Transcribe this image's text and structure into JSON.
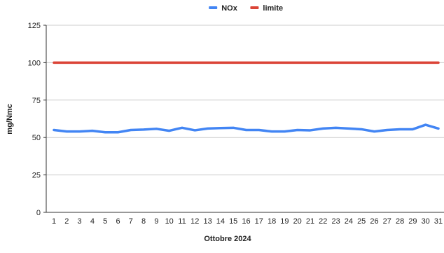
{
  "chart_data": {
    "type": "line",
    "title": "",
    "xlabel": "Ottobre 2024",
    "ylabel": "mg/Nmc",
    "x": [
      1,
      2,
      3,
      4,
      5,
      6,
      7,
      8,
      9,
      10,
      11,
      12,
      13,
      14,
      15,
      16,
      17,
      18,
      19,
      20,
      21,
      22,
      23,
      24,
      25,
      26,
      27,
      28,
      29,
      30,
      31
    ],
    "x_tick_labels": [
      "1",
      "2",
      "3",
      "4",
      "5",
      "6",
      "7",
      "8",
      "9",
      "10",
      "11",
      "12",
      "13",
      "14",
      "15",
      "16",
      "17",
      "18",
      "19",
      "20",
      "21",
      "22",
      "23",
      "24",
      "25",
      "26",
      "27",
      "28",
      "29",
      "30",
      "31"
    ],
    "ylim": [
      0,
      125
    ],
    "y_ticks": [
      0,
      25,
      50,
      75,
      100,
      125
    ],
    "y_tick_labels": [
      "0",
      "25",
      "50",
      "75",
      "100",
      "125"
    ],
    "grid": true,
    "legend_position": "top-center",
    "series": [
      {
        "name": "NOx",
        "color": "#4285f4",
        "values": [
          55,
          54,
          54,
          54.5,
          53.5,
          53.5,
          55,
          55.3,
          55.8,
          54.5,
          56.5,
          54.8,
          56,
          56.3,
          56.5,
          55,
          55,
          54,
          54,
          55,
          54.8,
          56,
          56.5,
          56,
          55.5,
          54,
          55,
          55.5,
          55.5,
          58.5,
          56
        ]
      },
      {
        "name": "limite",
        "color": "#db4437",
        "values": [
          100,
          100,
          100,
          100,
          100,
          100,
          100,
          100,
          100,
          100,
          100,
          100,
          100,
          100,
          100,
          100,
          100,
          100,
          100,
          100,
          100,
          100,
          100,
          100,
          100,
          100,
          100,
          100,
          100,
          100,
          100
        ]
      }
    ]
  }
}
